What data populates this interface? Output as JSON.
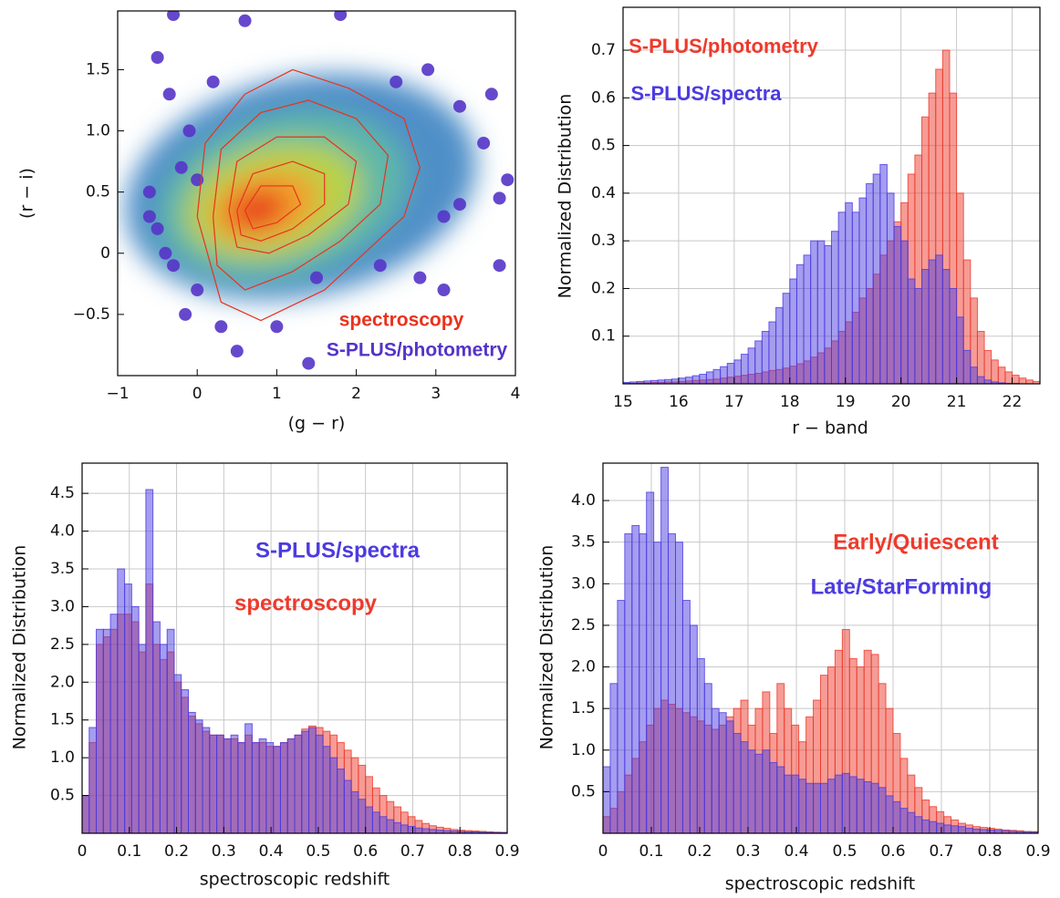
{
  "chart_data": [
    {
      "type": "scatter",
      "xlabel": "(g − r)",
      "ylabel": "(r − i)",
      "xlim": [
        -1,
        4
      ],
      "ylim": [
        -1.0,
        1.98
      ],
      "xticks": [
        {
          "value": -1,
          "label": "−1"
        },
        0,
        1,
        2,
        3,
        4
      ],
      "yticks": [
        {
          "value": -0.5,
          "label": "−0.5"
        },
        0,
        0.5,
        {
          "value": 1,
          "label": "1.0"
        },
        1.5
      ],
      "grid": false,
      "series": [
        {
          "name": "spectroscopy",
          "color": "#e8321e",
          "contours": [
            {
              "x": [
                0.0,
                0.1,
                0.6,
                1.2,
                1.9,
                2.6,
                2.8,
                2.6,
                2.1,
                1.6,
                0.8,
                0.3,
                0.0
              ],
              "y": [
                0.3,
                0.9,
                1.3,
                1.5,
                1.35,
                1.1,
                0.7,
                0.3,
                0.0,
                -0.3,
                -0.55,
                -0.4,
                0.3
              ]
            },
            {
              "x": [
                0.2,
                0.3,
                0.8,
                1.4,
                2.0,
                2.4,
                2.3,
                1.8,
                1.2,
                0.6,
                0.25,
                0.2
              ],
              "y": [
                0.3,
                0.85,
                1.15,
                1.25,
                1.1,
                0.8,
                0.4,
                0.1,
                -0.15,
                -0.3,
                -0.1,
                0.3
              ]
            },
            {
              "x": [
                0.4,
                0.5,
                1.0,
                1.6,
                2.0,
                1.9,
                1.4,
                0.9,
                0.5,
                0.4
              ],
              "y": [
                0.35,
                0.75,
                0.95,
                0.95,
                0.75,
                0.4,
                0.15,
                0.0,
                0.05,
                0.35
              ]
            },
            {
              "x": [
                0.5,
                0.7,
                1.2,
                1.6,
                1.6,
                1.2,
                0.8,
                0.55,
                0.5
              ],
              "y": [
                0.35,
                0.65,
                0.75,
                0.65,
                0.4,
                0.2,
                0.1,
                0.15,
                0.35
              ]
            },
            {
              "x": [
                0.6,
                0.8,
                1.2,
                1.3,
                1.0,
                0.7,
                0.6
              ],
              "y": [
                0.35,
                0.55,
                0.55,
                0.4,
                0.25,
                0.2,
                0.35
              ]
            }
          ]
        },
        {
          "name": "S-PLUS/photometry",
          "color": "#5534c8",
          "x": [
            -0.3,
            0.6,
            1.8,
            -0.5,
            -0.35,
            -0.6,
            -0.5,
            -0.4,
            -0.3,
            -0.2,
            -0.15,
            0.0,
            0.3,
            0.5,
            1.0,
            1.4,
            1.5,
            2.3,
            2.8,
            3.1,
            3.8,
            3.7,
            3.6,
            3.9,
            3.3,
            3.1,
            2.9,
            2.5,
            3.3,
            3.8,
            -0.6,
            0.2,
            -0.1,
            0.0
          ],
          "y": [
            1.95,
            1.9,
            1.95,
            1.6,
            1.3,
            0.5,
            0.2,
            0.0,
            -0.1,
            0.7,
            -0.5,
            -0.3,
            -0.6,
            -0.8,
            -0.6,
            -0.9,
            -0.2,
            -0.1,
            -0.2,
            -0.3,
            -0.1,
            1.3,
            0.9,
            0.6,
            0.4,
            0.3,
            1.5,
            1.4,
            1.2,
            0.45,
            0.3,
            1.4,
            1.0,
            0.6
          ]
        }
      ]
    },
    {
      "type": "histogram",
      "xlabel": "r − band",
      "ylabel": "Normalized Distribution",
      "xlim": [
        15,
        22.5
      ],
      "ylim": [
        0,
        0.79
      ],
      "xticks": [
        15,
        16,
        17,
        18,
        19,
        20,
        21,
        22
      ],
      "yticks": [
        0.1,
        0.2,
        0.3,
        0.4,
        0.5,
        0.6,
        0.7
      ],
      "grid": true,
      "bins": [
        15,
        15.125,
        15.25,
        15.375,
        15.5,
        15.625,
        15.75,
        15.875,
        16,
        16.125,
        16.25,
        16.375,
        16.5,
        16.625,
        16.75,
        16.875,
        17,
        17.125,
        17.25,
        17.375,
        17.5,
        17.625,
        17.75,
        17.875,
        18,
        18.125,
        18.25,
        18.375,
        18.5,
        18.625,
        18.75,
        18.875,
        19,
        19.125,
        19.25,
        19.375,
        19.5,
        19.625,
        19.75,
        19.875,
        20,
        20.125,
        20.25,
        20.375,
        20.5,
        20.625,
        20.75,
        20.875,
        21,
        21.125,
        21.25,
        21.375,
        21.5,
        21.625,
        21.75,
        21.875,
        22,
        22.125,
        22.25,
        22.375,
        22.5
      ],
      "series": [
        {
          "name": "S-PLUS/photometry",
          "color": "#ee3a2c",
          "values": [
            0.001,
            0.001,
            0.002,
            0.002,
            0.003,
            0.003,
            0.004,
            0.004,
            0.005,
            0.006,
            0.007,
            0.008,
            0.009,
            0.01,
            0.012,
            0.014,
            0.016,
            0.018,
            0.02,
            0.022,
            0.025,
            0.028,
            0.03,
            0.033,
            0.037,
            0.042,
            0.048,
            0.056,
            0.065,
            0.075,
            0.09,
            0.11,
            0.13,
            0.15,
            0.18,
            0.2,
            0.23,
            0.27,
            0.3,
            0.34,
            0.38,
            0.44,
            0.48,
            0.56,
            0.61,
            0.66,
            0.7,
            0.61,
            0.4,
            0.26,
            0.18,
            0.11,
            0.07,
            0.05,
            0.035,
            0.025,
            0.018,
            0.012,
            0.008,
            0.005
          ]
        },
        {
          "name": "S-PLUS/spectra",
          "color": "#4c3be0",
          "values": [
            0.003,
            0.004,
            0.005,
            0.006,
            0.007,
            0.008,
            0.009,
            0.01,
            0.012,
            0.014,
            0.017,
            0.02,
            0.025,
            0.03,
            0.036,
            0.043,
            0.05,
            0.062,
            0.075,
            0.09,
            0.11,
            0.13,
            0.16,
            0.19,
            0.22,
            0.25,
            0.27,
            0.3,
            0.3,
            0.29,
            0.32,
            0.36,
            0.38,
            0.36,
            0.39,
            0.42,
            0.44,
            0.46,
            0.4,
            0.33,
            0.3,
            0.22,
            0.2,
            0.24,
            0.26,
            0.27,
            0.24,
            0.2,
            0.14,
            0.07,
            0.035,
            0.015,
            0.008,
            0.004,
            0.002,
            0.001,
            0.001,
            0,
            0,
            0
          ]
        }
      ]
    },
    {
      "type": "histogram",
      "xlabel": "spectroscopic redshift",
      "ylabel": "Normalized Distribution",
      "xlim": [
        0,
        0.9
      ],
      "ylim": [
        0,
        4.9
      ],
      "xticks": [
        0,
        0.1,
        0.2,
        0.3,
        0.4,
        0.5,
        0.6,
        0.7,
        0.8,
        0.9
      ],
      "yticks": [
        0.5,
        {
          "value": 1,
          "label": "1.0"
        },
        1.5,
        {
          "value": 2,
          "label": "2.0"
        },
        2.5,
        {
          "value": 3,
          "label": "3.0"
        },
        3.5,
        {
          "value": 4,
          "label": "4.0"
        },
        4.5
      ],
      "grid": true,
      "bins": [
        0,
        0.015,
        0.03,
        0.045,
        0.06,
        0.075,
        0.09,
        0.105,
        0.12,
        0.135,
        0.15,
        0.165,
        0.18,
        0.195,
        0.21,
        0.225,
        0.24,
        0.255,
        0.27,
        0.285,
        0.3,
        0.315,
        0.33,
        0.345,
        0.36,
        0.375,
        0.39,
        0.405,
        0.42,
        0.435,
        0.45,
        0.465,
        0.48,
        0.495,
        0.51,
        0.525,
        0.54,
        0.555,
        0.57,
        0.585,
        0.6,
        0.615,
        0.63,
        0.645,
        0.66,
        0.675,
        0.69,
        0.705,
        0.72,
        0.735,
        0.75,
        0.765,
        0.78,
        0.795,
        0.81,
        0.825,
        0.84,
        0.855,
        0.87,
        0.885,
        0.9
      ],
      "series": [
        {
          "name": "S-PLUS/spectra",
          "color": "#4c3be0",
          "values": [
            0.5,
            1.4,
            2.7,
            2.7,
            2.9,
            3.5,
            3.3,
            3.0,
            2.5,
            4.55,
            2.8,
            2.5,
            2.7,
            2.1,
            1.9,
            1.6,
            1.5,
            1.4,
            1.3,
            1.3,
            1.25,
            1.3,
            1.2,
            1.45,
            1.2,
            1.25,
            1.2,
            1.15,
            1.2,
            1.25,
            1.3,
            1.35,
            1.4,
            1.3,
            1.15,
            1.0,
            0.85,
            0.7,
            0.55,
            0.45,
            0.35,
            0.28,
            0.22,
            0.18,
            0.14,
            0.11,
            0.09,
            0.07,
            0.06,
            0.05,
            0.04,
            0.035,
            0.03,
            0.025,
            0.02,
            0.02,
            0.015,
            0.012,
            0.01,
            0.01
          ]
        },
        {
          "name": "spectroscopy",
          "color": "#ee3a2c",
          "values": [
            0.5,
            1.2,
            2.5,
            2.6,
            2.7,
            2.9,
            2.9,
            2.8,
            2.4,
            3.3,
            2.5,
            2.3,
            2.4,
            2.0,
            1.8,
            1.55,
            1.45,
            1.35,
            1.3,
            1.3,
            1.25,
            1.25,
            1.2,
            1.3,
            1.2,
            1.2,
            1.15,
            1.15,
            1.2,
            1.25,
            1.3,
            1.38,
            1.42,
            1.4,
            1.35,
            1.3,
            1.2,
            1.1,
            1.0,
            0.9,
            0.75,
            0.6,
            0.5,
            0.42,
            0.35,
            0.28,
            0.22,
            0.17,
            0.13,
            0.1,
            0.08,
            0.065,
            0.05,
            0.04,
            0.035,
            0.03,
            0.025,
            0.02,
            0.015,
            0.012
          ]
        }
      ]
    },
    {
      "type": "histogram",
      "xlabel": "spectroscopic redshift",
      "ylabel": "Normalized Distribution",
      "xlim": [
        0,
        0.9
      ],
      "ylim": [
        0,
        4.45
      ],
      "xticks": [
        0,
        0.1,
        0.2,
        0.3,
        0.4,
        0.5,
        0.6,
        0.7,
        0.8,
        0.9
      ],
      "yticks": [
        0.5,
        {
          "value": 1,
          "label": "1.0"
        },
        1.5,
        {
          "value": 2,
          "label": "2.0"
        },
        2.5,
        {
          "value": 3,
          "label": "3.0"
        },
        3.5,
        {
          "value": 4,
          "label": "4.0"
        }
      ],
      "grid": true,
      "bins": [
        0,
        0.015,
        0.03,
        0.045,
        0.06,
        0.075,
        0.09,
        0.105,
        0.12,
        0.135,
        0.15,
        0.165,
        0.18,
        0.195,
        0.21,
        0.225,
        0.24,
        0.255,
        0.27,
        0.285,
        0.3,
        0.315,
        0.33,
        0.345,
        0.36,
        0.375,
        0.39,
        0.405,
        0.42,
        0.435,
        0.45,
        0.465,
        0.48,
        0.495,
        0.51,
        0.525,
        0.54,
        0.555,
        0.57,
        0.585,
        0.6,
        0.615,
        0.63,
        0.645,
        0.66,
        0.675,
        0.69,
        0.705,
        0.72,
        0.735,
        0.75,
        0.765,
        0.78,
        0.795,
        0.81,
        0.825,
        0.84,
        0.855,
        0.87,
        0.885,
        0.9
      ],
      "series": [
        {
          "name": "Early/Quiescent",
          "color": "#ee3a2c",
          "values": [
            0.2,
            0.3,
            0.5,
            0.7,
            0.9,
            1.1,
            1.3,
            1.5,
            1.6,
            1.55,
            1.5,
            1.45,
            1.4,
            1.35,
            1.3,
            1.25,
            1.3,
            1.4,
            1.5,
            1.6,
            1.3,
            1.5,
            1.7,
            1.2,
            1.8,
            1.5,
            1.3,
            1.1,
            1.4,
            1.6,
            1.9,
            2.0,
            2.2,
            2.45,
            2.1,
            2.0,
            2.2,
            2.15,
            1.8,
            1.5,
            1.2,
            0.9,
            0.7,
            0.55,
            0.4,
            0.32,
            0.26,
            0.2,
            0.16,
            0.12,
            0.1,
            0.08,
            0.07,
            0.06,
            0.05,
            0.04,
            0.035,
            0.03,
            0.02,
            0.02
          ]
        },
        {
          "name": "Late/StarForming",
          "color": "#4c3be0",
          "values": [
            0.8,
            1.8,
            2.8,
            3.6,
            3.7,
            3.6,
            4.1,
            3.5,
            4.4,
            3.6,
            3.5,
            2.8,
            2.5,
            2.1,
            1.8,
            1.5,
            1.45,
            1.35,
            1.2,
            1.1,
            1.0,
            0.95,
            1.0,
            0.85,
            0.8,
            0.7,
            0.7,
            0.65,
            0.6,
            0.6,
            0.6,
            0.65,
            0.7,
            0.72,
            0.68,
            0.65,
            0.62,
            0.6,
            0.55,
            0.45,
            0.38,
            0.3,
            0.25,
            0.2,
            0.16,
            0.14,
            0.12,
            0.1,
            0.09,
            0.08,
            0.06,
            0.05,
            0.045,
            0.04,
            0.035,
            0.03,
            0.025,
            0.02,
            0.02,
            0.015
          ]
        }
      ]
    }
  ]
}
